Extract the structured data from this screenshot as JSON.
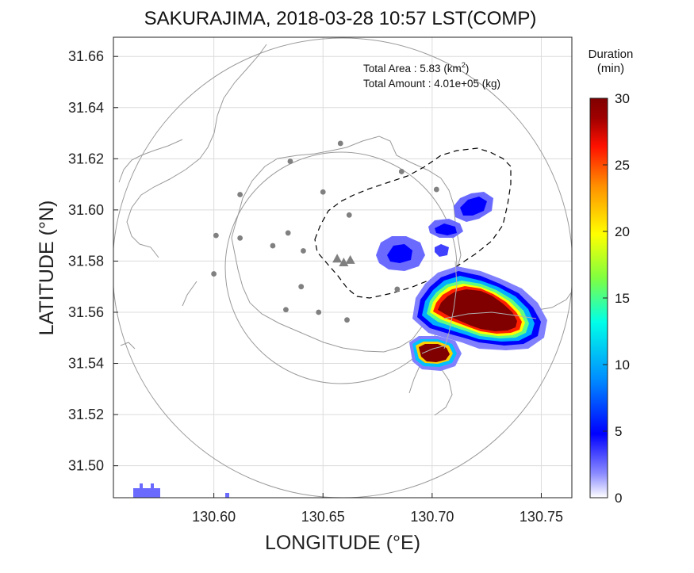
{
  "chart_data": {
    "type": "heatmap",
    "title": "SAKURAJIMA, 2018-03-28 10:57 LST(COMP)",
    "xlabel": "LONGITUDE (°E)",
    "ylabel": "LATITUDE (°N)",
    "xlim": [
      130.554,
      130.764
    ],
    "ylim": [
      31.4875,
      31.6675
    ],
    "xticks": [
      "130.60",
      "130.65",
      "130.70",
      "130.75"
    ],
    "xtick_values": [
      130.6,
      130.65,
      130.7,
      130.75
    ],
    "yticks": [
      "31.50",
      "31.52",
      "31.54",
      "31.56",
      "31.58",
      "31.60",
      "31.62",
      "31.64",
      "31.66"
    ],
    "ytick_values": [
      31.5,
      31.52,
      31.54,
      31.56,
      31.58,
      31.6,
      31.62,
      31.64,
      31.66
    ],
    "grid": true,
    "annotations": {
      "area_label": "Total Area   : 5.83 (km",
      "area_sup": "2",
      "area_close": ")",
      "amount_label": "Total Amount : 4.01e+05 (kg)"
    },
    "colorbar": {
      "title_line1": "Duration",
      "title_line2": "(min)",
      "range": [
        0,
        30
      ],
      "ticks": [
        "0",
        "5",
        "10",
        "15",
        "20",
        "25",
        "30"
      ],
      "tick_values": [
        0,
        5,
        10,
        15,
        20,
        25,
        30
      ],
      "colors": [
        "#ffffff",
        "#6a6aff",
        "#0000ff",
        "#00a0ff",
        "#00ffe0",
        "#7fff40",
        "#ffff00",
        "#ff9000",
        "#ff1000",
        "#900000",
        "#800000"
      ]
    },
    "duration_regions": [
      {
        "region": "south-east main plume",
        "lon": 130.725,
        "lat": 31.556,
        "peak_minutes": 30
      },
      {
        "region": "south plume near coast",
        "lon": 130.7,
        "lat": 31.543,
        "peak_minutes": 30
      },
      {
        "region": "north-east patch",
        "lon": 130.72,
        "lat": 31.599,
        "peak_minutes": 5
      },
      {
        "region": "central patch",
        "lon": 130.686,
        "lat": 31.583,
        "peak_minutes": 4
      },
      {
        "region": "small east patch",
        "lon": 130.709,
        "lat": 31.592,
        "peak_minutes": 3
      },
      {
        "region": "south-west corner patch",
        "lon": 130.568,
        "lat": 31.489,
        "peak_minutes": 1
      }
    ],
    "volcano_vents": [
      {
        "lon": 130.6565,
        "lat": 31.581
      },
      {
        "lon": 130.6595,
        "lat": 31.5795
      },
      {
        "lon": 130.6625,
        "lat": 31.5805
      }
    ],
    "stations": [
      {
        "lon": 130.658,
        "lat": 31.626
      },
      {
        "lon": 130.635,
        "lat": 31.619
      },
      {
        "lon": 130.612,
        "lat": 31.606
      },
      {
        "lon": 130.65,
        "lat": 31.607
      },
      {
        "lon": 130.686,
        "lat": 31.615
      },
      {
        "lon": 130.662,
        "lat": 31.598
      },
      {
        "lon": 130.702,
        "lat": 31.608
      },
      {
        "lon": 130.601,
        "lat": 31.59
      },
      {
        "lon": 130.612,
        "lat": 31.589
      },
      {
        "lon": 130.627,
        "lat": 31.586
      },
      {
        "lon": 130.634,
        "lat": 31.591
      },
      {
        "lon": 130.641,
        "lat": 31.584
      },
      {
        "lon": 130.6,
        "lat": 31.575
      },
      {
        "lon": 130.64,
        "lat": 31.57
      },
      {
        "lon": 130.633,
        "lat": 31.561
      },
      {
        "lon": 130.648,
        "lat": 31.56
      },
      {
        "lon": 130.661,
        "lat": 31.557
      },
      {
        "lon": 130.684,
        "lat": 31.569
      }
    ]
  }
}
